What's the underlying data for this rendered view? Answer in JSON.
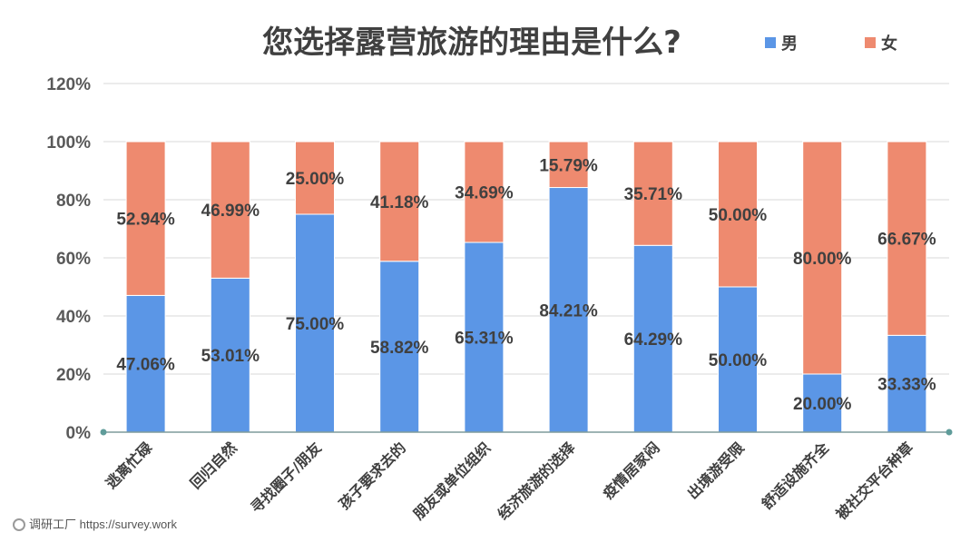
{
  "chart_data": {
    "type": "bar",
    "stacked": true,
    "title": "您选择露营旅游的理由是什么?",
    "categories": [
      "逃离忙碌",
      "回归自然",
      "寻找圈子/朋友",
      "孩子要求去的",
      "朋友或单位组织",
      "经济旅游的选择",
      "疫情居家闷",
      "出境游受限",
      "舒适设施齐全",
      "被社交平台种草"
    ],
    "series": [
      {
        "name": "男",
        "color": "#5b96e6",
        "values": [
          47.06,
          53.01,
          75.0,
          58.82,
          65.31,
          84.21,
          64.29,
          50.0,
          20.0,
          33.33
        ],
        "labels": [
          "47.06%",
          "53.01%",
          "75.00%",
          "58.82%",
          "65.31%",
          "84.21%",
          "64.29%",
          "50.00%",
          "20.00%",
          "33.33%"
        ]
      },
      {
        "name": "女",
        "color": "#ee8a6f",
        "values": [
          52.94,
          46.99,
          25.0,
          41.18,
          34.69,
          15.79,
          35.71,
          50.0,
          80.0,
          66.67
        ],
        "labels": [
          "52.94%",
          "46.99%",
          "25.00%",
          "41.18%",
          "34.69%",
          "15.79%",
          "35.71%",
          "50.00%",
          "80.00%",
          "66.67%"
        ]
      }
    ],
    "ylim": [
      0,
      120
    ],
    "yticks": [
      "0%",
      "20%",
      "40%",
      "60%",
      "80%",
      "100%",
      "120%"
    ],
    "grid": true,
    "legend_position": "top-right",
    "xlabel": "",
    "ylabel": ""
  },
  "footer": {
    "text": "调研工厂 https://survey.work"
  }
}
